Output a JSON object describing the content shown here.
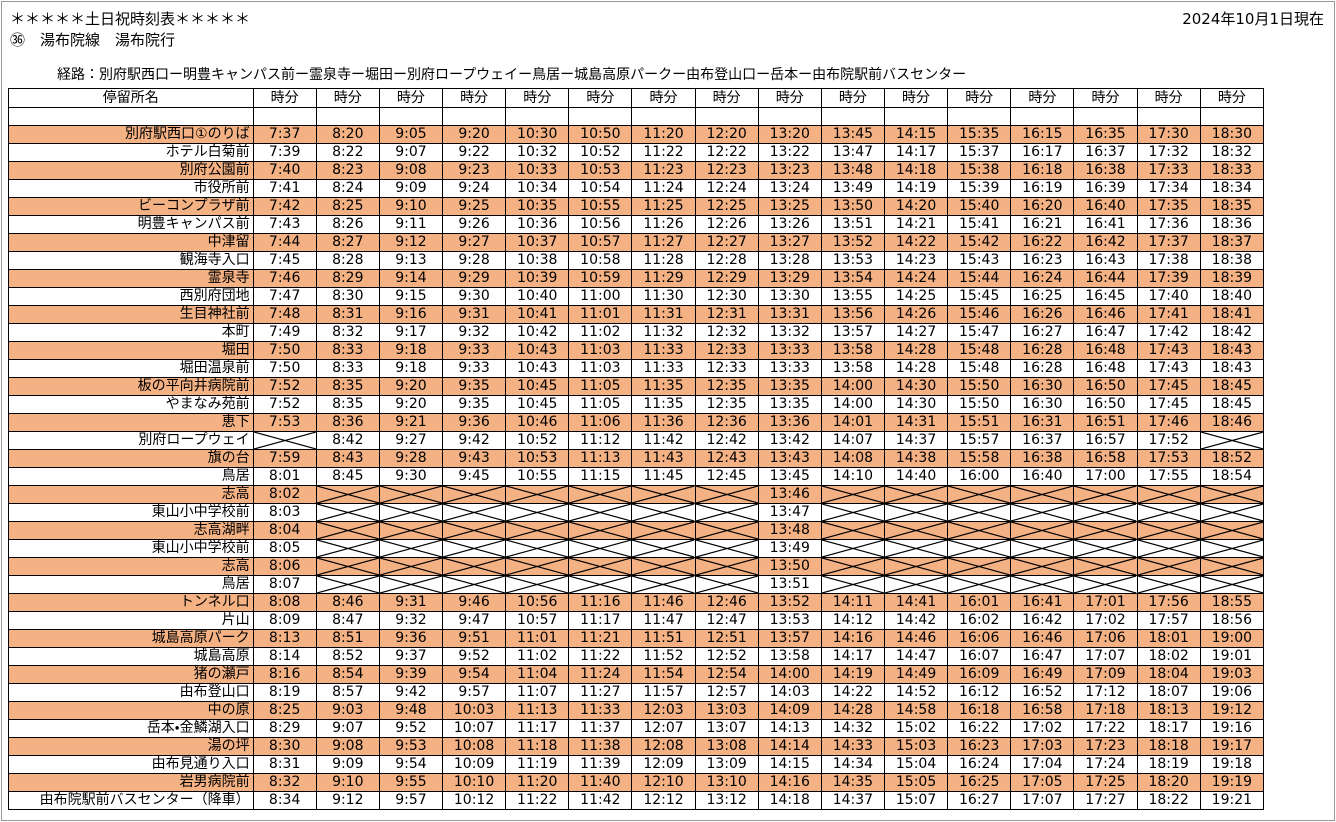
{
  "header": {
    "title": "＊＊＊＊＊土日祝時刻表＊＊＊＊＊",
    "subtitle": "㊱　湯布院線　湯布院行",
    "date": "2024年10月1日現在",
    "route": "経路：別府駅西口ー明豊キャンパス前ー霊泉寺ー堀田ー別府ロープウェイー鳥居ー城島高原パークー由布登山口ー岳本ー由布院駅前バスセンター"
  },
  "table": {
    "columns": [
      "停留所名",
      "時分",
      "時分",
      "時分",
      "時分",
      "時分",
      "時分",
      "時分",
      "時分",
      "時分",
      "時分",
      "時分",
      "時分",
      "時分",
      "時分",
      "時分",
      "時分"
    ],
    "rows": [
      {
        "stop": "別府駅西口①のりば",
        "times": [
          "7:37",
          "8:20",
          "9:05",
          "9:20",
          "10:30",
          "10:50",
          "11:20",
          "12:20",
          "13:20",
          "13:45",
          "14:15",
          "15:35",
          "16:15",
          "16:35",
          "17:30",
          "18:30"
        ]
      },
      {
        "stop": "ホテル白菊前",
        "times": [
          "7:39",
          "8:22",
          "9:07",
          "9:22",
          "10:32",
          "10:52",
          "11:22",
          "12:22",
          "13:22",
          "13:47",
          "14:17",
          "15:37",
          "16:17",
          "16:37",
          "17:32",
          "18:32"
        ]
      },
      {
        "stop": "別府公園前",
        "times": [
          "7:40",
          "8:23",
          "9:08",
          "9:23",
          "10:33",
          "10:53",
          "11:23",
          "12:23",
          "13:23",
          "13:48",
          "14:18",
          "15:38",
          "16:18",
          "16:38",
          "17:33",
          "18:33"
        ]
      },
      {
        "stop": "市役所前",
        "times": [
          "7:41",
          "8:24",
          "9:09",
          "9:24",
          "10:34",
          "10:54",
          "11:24",
          "12:24",
          "13:24",
          "13:49",
          "14:19",
          "15:39",
          "16:19",
          "16:39",
          "17:34",
          "18:34"
        ]
      },
      {
        "stop": "ビーコンプラザ前",
        "times": [
          "7:42",
          "8:25",
          "9:10",
          "9:25",
          "10:35",
          "10:55",
          "11:25",
          "12:25",
          "13:25",
          "13:50",
          "14:20",
          "15:40",
          "16:20",
          "16:40",
          "17:35",
          "18:35"
        ]
      },
      {
        "stop": "明豊キャンパス前",
        "times": [
          "7:43",
          "8:26",
          "9:11",
          "9:26",
          "10:36",
          "10:56",
          "11:26",
          "12:26",
          "13:26",
          "13:51",
          "14:21",
          "15:41",
          "16:21",
          "16:41",
          "17:36",
          "18:36"
        ]
      },
      {
        "stop": "中津留",
        "times": [
          "7:44",
          "8:27",
          "9:12",
          "9:27",
          "10:37",
          "10:57",
          "11:27",
          "12:27",
          "13:27",
          "13:52",
          "14:22",
          "15:42",
          "16:22",
          "16:42",
          "17:37",
          "18:37"
        ]
      },
      {
        "stop": "観海寺入口",
        "times": [
          "7:45",
          "8:28",
          "9:13",
          "9:28",
          "10:38",
          "10:58",
          "11:28",
          "12:28",
          "13:28",
          "13:53",
          "14:23",
          "15:43",
          "16:23",
          "16:43",
          "17:38",
          "18:38"
        ]
      },
      {
        "stop": "霊泉寺",
        "times": [
          "7:46",
          "8:29",
          "9:14",
          "9:29",
          "10:39",
          "10:59",
          "11:29",
          "12:29",
          "13:29",
          "13:54",
          "14:24",
          "15:44",
          "16:24",
          "16:44",
          "17:39",
          "18:39"
        ]
      },
      {
        "stop": "西別府団地",
        "times": [
          "7:47",
          "8:30",
          "9:15",
          "9:30",
          "10:40",
          "11:00",
          "11:30",
          "12:30",
          "13:30",
          "13:55",
          "14:25",
          "15:45",
          "16:25",
          "16:45",
          "17:40",
          "18:40"
        ]
      },
      {
        "stop": "生目神社前",
        "times": [
          "7:48",
          "8:31",
          "9:16",
          "9:31",
          "10:41",
          "11:01",
          "11:31",
          "12:31",
          "13:31",
          "13:56",
          "14:26",
          "15:46",
          "16:26",
          "16:46",
          "17:41",
          "18:41"
        ]
      },
      {
        "stop": "本町",
        "times": [
          "7:49",
          "8:32",
          "9:17",
          "9:32",
          "10:42",
          "11:02",
          "11:32",
          "12:32",
          "13:32",
          "13:57",
          "14:27",
          "15:47",
          "16:27",
          "16:47",
          "17:42",
          "18:42"
        ]
      },
      {
        "stop": "堀田",
        "times": [
          "7:50",
          "8:33",
          "9:18",
          "9:33",
          "10:43",
          "11:03",
          "11:33",
          "12:33",
          "13:33",
          "13:58",
          "14:28",
          "15:48",
          "16:28",
          "16:48",
          "17:43",
          "18:43"
        ]
      },
      {
        "stop": "堀田温泉前",
        "times": [
          "7:50",
          "8:33",
          "9:18",
          "9:33",
          "10:43",
          "11:03",
          "11:33",
          "12:33",
          "13:33",
          "13:58",
          "14:28",
          "15:48",
          "16:28",
          "16:48",
          "17:43",
          "18:43"
        ]
      },
      {
        "stop": "板の平向井病院前",
        "times": [
          "7:52",
          "8:35",
          "9:20",
          "9:35",
          "10:45",
          "11:05",
          "11:35",
          "12:35",
          "13:35",
          "14:00",
          "14:30",
          "15:50",
          "16:30",
          "16:50",
          "17:45",
          "18:45"
        ]
      },
      {
        "stop": "やまなみ苑前",
        "times": [
          "7:52",
          "8:35",
          "9:20",
          "9:35",
          "10:45",
          "11:05",
          "11:35",
          "12:35",
          "13:35",
          "14:00",
          "14:30",
          "15:50",
          "16:30",
          "16:50",
          "17:45",
          "18:45"
        ]
      },
      {
        "stop": "恵下",
        "times": [
          "7:53",
          "8:36",
          "9:21",
          "9:36",
          "10:46",
          "11:06",
          "11:36",
          "12:36",
          "13:36",
          "14:01",
          "14:31",
          "15:51",
          "16:31",
          "16:51",
          "17:46",
          "18:46"
        ]
      },
      {
        "stop": "別府ロープウェイ",
        "times": [
          null,
          "8:42",
          "9:27",
          "9:42",
          "10:52",
          "11:12",
          "11:42",
          "12:42",
          "13:42",
          "14:07",
          "14:37",
          "15:57",
          "16:37",
          "16:57",
          "17:52",
          null
        ]
      },
      {
        "stop": "旗の台",
        "times": [
          "7:59",
          "8:43",
          "9:28",
          "9:43",
          "10:53",
          "11:13",
          "11:43",
          "12:43",
          "13:43",
          "14:08",
          "14:38",
          "15:58",
          "16:38",
          "16:58",
          "17:53",
          "18:52"
        ]
      },
      {
        "stop": "鳥居",
        "times": [
          "8:01",
          "8:45",
          "9:30",
          "9:45",
          "10:55",
          "11:15",
          "11:45",
          "12:45",
          "13:45",
          "14:10",
          "14:40",
          "16:00",
          "16:40",
          "17:00",
          "17:55",
          "18:54"
        ]
      },
      {
        "stop": "志高",
        "times": [
          "8:02",
          null,
          null,
          null,
          null,
          null,
          null,
          null,
          "13:46",
          null,
          null,
          null,
          null,
          null,
          null,
          null
        ]
      },
      {
        "stop": "東山小中学校前",
        "times": [
          "8:03",
          null,
          null,
          null,
          null,
          null,
          null,
          null,
          "13:47",
          null,
          null,
          null,
          null,
          null,
          null,
          null
        ]
      },
      {
        "stop": "志高湖畔",
        "times": [
          "8:04",
          null,
          null,
          null,
          null,
          null,
          null,
          null,
          "13:48",
          null,
          null,
          null,
          null,
          null,
          null,
          null
        ]
      },
      {
        "stop": "東山小中学校前",
        "times": [
          "8:05",
          null,
          null,
          null,
          null,
          null,
          null,
          null,
          "13:49",
          null,
          null,
          null,
          null,
          null,
          null,
          null
        ]
      },
      {
        "stop": "志高",
        "times": [
          "8:06",
          null,
          null,
          null,
          null,
          null,
          null,
          null,
          "13:50",
          null,
          null,
          null,
          null,
          null,
          null,
          null
        ]
      },
      {
        "stop": "鳥居",
        "times": [
          "8:07",
          null,
          null,
          null,
          null,
          null,
          null,
          null,
          "13:51",
          null,
          null,
          null,
          null,
          null,
          null,
          null
        ]
      },
      {
        "stop": "トンネル口",
        "times": [
          "8:08",
          "8:46",
          "9:31",
          "9:46",
          "10:56",
          "11:16",
          "11:46",
          "12:46",
          "13:52",
          "14:11",
          "14:41",
          "16:01",
          "16:41",
          "17:01",
          "17:56",
          "18:55"
        ]
      },
      {
        "stop": "片山",
        "times": [
          "8:09",
          "8:47",
          "9:32",
          "9:47",
          "10:57",
          "11:17",
          "11:47",
          "12:47",
          "13:53",
          "14:12",
          "14:42",
          "16:02",
          "16:42",
          "17:02",
          "17:57",
          "18:56"
        ]
      },
      {
        "stop": "城島高原パーク",
        "times": [
          "8:13",
          "8:51",
          "9:36",
          "9:51",
          "11:01",
          "11:21",
          "11:51",
          "12:51",
          "13:57",
          "14:16",
          "14:46",
          "16:06",
          "16:46",
          "17:06",
          "18:01",
          "19:00"
        ]
      },
      {
        "stop": "城島高原",
        "times": [
          "8:14",
          "8:52",
          "9:37",
          "9:52",
          "11:02",
          "11:22",
          "11:52",
          "12:52",
          "13:58",
          "14:17",
          "14:47",
          "16:07",
          "16:47",
          "17:07",
          "18:02",
          "19:01"
        ]
      },
      {
        "stop": "猪の瀬戸",
        "times": [
          "8:16",
          "8:54",
          "9:39",
          "9:54",
          "11:04",
          "11:24",
          "11:54",
          "12:54",
          "14:00",
          "14:19",
          "14:49",
          "16:09",
          "16:49",
          "17:09",
          "18:04",
          "19:03"
        ]
      },
      {
        "stop": "由布登山口",
        "times": [
          "8:19",
          "8:57",
          "9:42",
          "9:57",
          "11:07",
          "11:27",
          "11:57",
          "12:57",
          "14:03",
          "14:22",
          "14:52",
          "16:12",
          "16:52",
          "17:12",
          "18:07",
          "19:06"
        ]
      },
      {
        "stop": "中の原",
        "times": [
          "8:25",
          "9:03",
          "9:48",
          "10:03",
          "11:13",
          "11:33",
          "12:03",
          "13:03",
          "14:09",
          "14:28",
          "14:58",
          "16:18",
          "16:58",
          "17:18",
          "18:13",
          "19:12"
        ]
      },
      {
        "stop": "岳本・金鱗湖入口",
        "times": [
          "8:29",
          "9:07",
          "9:52",
          "10:07",
          "11:17",
          "11:37",
          "12:07",
          "13:07",
          "14:13",
          "14:32",
          "15:02",
          "16:22",
          "17:02",
          "17:22",
          "18:17",
          "19:16"
        ]
      },
      {
        "stop": "湯の坪",
        "times": [
          "8:30",
          "9:08",
          "9:53",
          "10:08",
          "11:18",
          "11:38",
          "12:08",
          "13:08",
          "14:14",
          "14:33",
          "15:03",
          "16:23",
          "17:03",
          "17:23",
          "18:18",
          "19:17"
        ]
      },
      {
        "stop": "由布見通り入口",
        "times": [
          "8:31",
          "9:09",
          "9:54",
          "10:09",
          "11:19",
          "11:39",
          "12:09",
          "13:09",
          "14:15",
          "14:34",
          "15:04",
          "16:24",
          "17:04",
          "17:24",
          "18:19",
          "19:18"
        ]
      },
      {
        "stop": "岩男病院前",
        "times": [
          "8:32",
          "9:10",
          "9:55",
          "10:10",
          "11:20",
          "11:40",
          "12:10",
          "13:10",
          "14:16",
          "14:35",
          "15:05",
          "16:25",
          "17:05",
          "17:25",
          "18:20",
          "19:19"
        ]
      },
      {
        "stop": "由布院駅前バスセンター（降車）",
        "times": [
          "8:34",
          "9:12",
          "9:57",
          "10:12",
          "11:22",
          "11:42",
          "12:12",
          "13:12",
          "14:18",
          "14:37",
          "15:07",
          "16:27",
          "17:07",
          "17:27",
          "18:22",
          "19:21"
        ]
      }
    ]
  }
}
